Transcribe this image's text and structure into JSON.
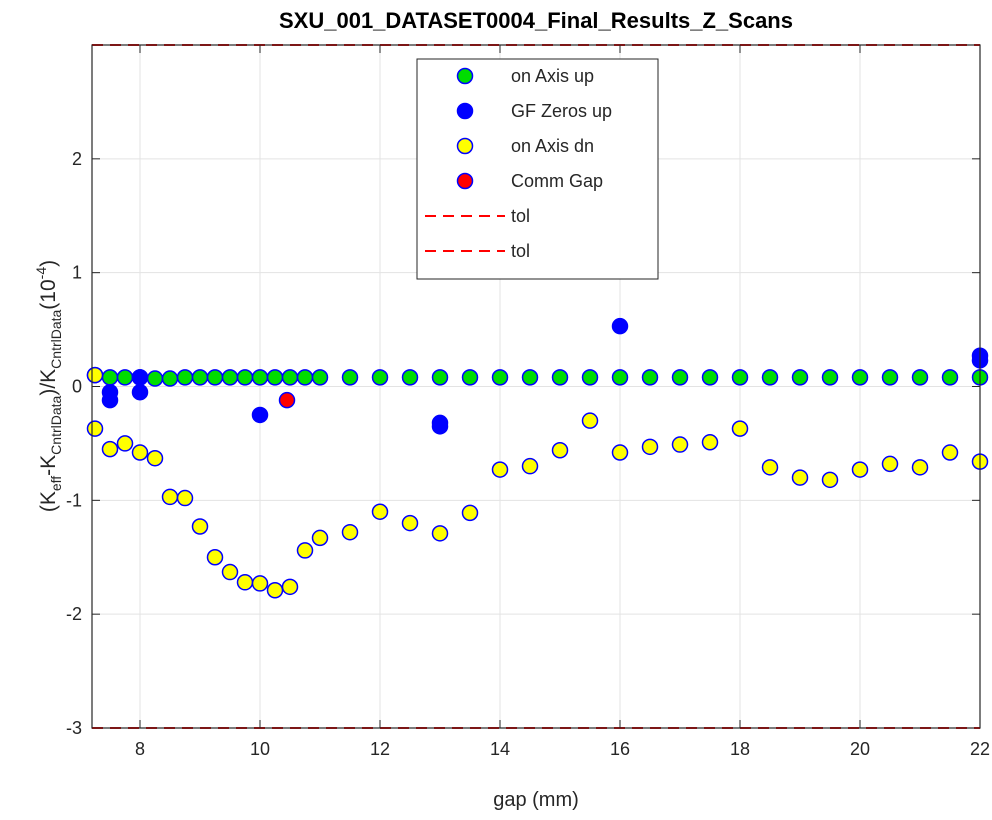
{
  "chart_data": {
    "type": "scatter",
    "title": "SXU_001_DATASET0004_Final_Results_Z_Scans",
    "xlabel": "gap (mm)",
    "ylabel": {
      "pre": "(K",
      "sub1": "eff",
      "mid1": "-K",
      "sub2": "CntrlData",
      "mid2": ")/K",
      "sub3": "CntrlData",
      "mid3": "(10",
      "sup": "-4",
      "post": ")"
    },
    "xlim": [
      7.2,
      22
    ],
    "ylim": [
      -3,
      3
    ],
    "xticks": [
      8,
      10,
      12,
      14,
      16,
      18,
      20,
      22
    ],
    "yticks": [
      -3,
      -2,
      -1,
      0,
      1,
      2
    ],
    "grid": true,
    "legend_position": "top-center",
    "tolerance": [
      3,
      -3
    ],
    "series": [
      {
        "name": "on Axis up",
        "color": "#00dd00",
        "edge": "#0000ff",
        "points": [
          [
            7.25,
            0.1
          ],
          [
            7.5,
            0.08
          ],
          [
            7.75,
            0.08
          ],
          [
            8.0,
            0.08
          ],
          [
            8.25,
            0.07
          ],
          [
            8.5,
            0.07
          ],
          [
            8.75,
            0.08
          ],
          [
            9.0,
            0.08
          ],
          [
            9.25,
            0.08
          ],
          [
            9.5,
            0.08
          ],
          [
            9.75,
            0.08
          ],
          [
            10.0,
            0.08
          ],
          [
            10.25,
            0.08
          ],
          [
            10.5,
            0.08
          ],
          [
            10.75,
            0.08
          ],
          [
            11.0,
            0.08
          ],
          [
            11.5,
            0.08
          ],
          [
            12.0,
            0.08
          ],
          [
            12.5,
            0.08
          ],
          [
            13.0,
            0.08
          ],
          [
            13.5,
            0.08
          ],
          [
            14.0,
            0.08
          ],
          [
            14.5,
            0.08
          ],
          [
            15.0,
            0.08
          ],
          [
            15.5,
            0.08
          ],
          [
            16.0,
            0.08
          ],
          [
            16.5,
            0.08
          ],
          [
            17.0,
            0.08
          ],
          [
            17.5,
            0.08
          ],
          [
            18.0,
            0.08
          ],
          [
            18.5,
            0.08
          ],
          [
            19.0,
            0.08
          ],
          [
            19.5,
            0.08
          ],
          [
            20.0,
            0.08
          ],
          [
            20.5,
            0.08
          ],
          [
            21.0,
            0.08
          ],
          [
            21.5,
            0.08
          ],
          [
            22.0,
            0.08
          ]
        ]
      },
      {
        "name": "GF Zeros up",
        "color": "#0000ff",
        "edge": "#0000ff",
        "points": [
          [
            7.5,
            -0.05
          ],
          [
            7.5,
            -0.12
          ],
          [
            8.0,
            0.08
          ],
          [
            8.0,
            -0.05
          ],
          [
            10.0,
            -0.25
          ],
          [
            13.0,
            -0.32
          ],
          [
            13.0,
            -0.35
          ],
          [
            16.0,
            0.53
          ],
          [
            22.0,
            0.27
          ],
          [
            22.0,
            0.23
          ]
        ]
      },
      {
        "name": "on Axis dn",
        "color": "#ffff00",
        "edge": "#0000ff",
        "points": [
          [
            7.25,
            0.1
          ],
          [
            7.25,
            -0.37
          ],
          [
            7.5,
            -0.55
          ],
          [
            7.75,
            -0.5
          ],
          [
            8.0,
            -0.58
          ],
          [
            8.25,
            -0.63
          ],
          [
            8.5,
            -0.97
          ],
          [
            8.75,
            -0.98
          ],
          [
            9.0,
            -1.23
          ],
          [
            9.25,
            -1.5
          ],
          [
            9.5,
            -1.63
          ],
          [
            9.75,
            -1.72
          ],
          [
            10.0,
            -1.73
          ],
          [
            10.25,
            -1.79
          ],
          [
            10.5,
            -1.76
          ],
          [
            10.75,
            -1.44
          ],
          [
            11.0,
            -1.33
          ],
          [
            11.5,
            -1.28
          ],
          [
            12.0,
            -1.1
          ],
          [
            12.5,
            -1.2
          ],
          [
            13.0,
            -1.29
          ],
          [
            13.5,
            -1.11
          ],
          [
            14.0,
            -0.73
          ],
          [
            14.5,
            -0.7
          ],
          [
            15.0,
            -0.56
          ],
          [
            15.5,
            -0.3
          ],
          [
            16.0,
            -0.58
          ],
          [
            16.5,
            -0.53
          ],
          [
            17.0,
            -0.51
          ],
          [
            17.5,
            -0.49
          ],
          [
            18.0,
            -0.37
          ],
          [
            18.5,
            -0.71
          ],
          [
            19.0,
            -0.8
          ],
          [
            19.5,
            -0.82
          ],
          [
            20.0,
            -0.73
          ],
          [
            20.5,
            -0.68
          ],
          [
            21.0,
            -0.71
          ],
          [
            21.5,
            -0.58
          ],
          [
            22.0,
            -0.66
          ]
        ]
      },
      {
        "name": "Comm Gap",
        "color": "#ff0000",
        "edge": "#0000ff",
        "points": [
          [
            10.45,
            -0.12
          ]
        ]
      },
      {
        "name": "tol",
        "color": "#ff0000",
        "style": "dashed",
        "value": 3
      },
      {
        "name": "tol",
        "color": "#ff0000",
        "style": "dashed",
        "value": -3
      }
    ]
  }
}
